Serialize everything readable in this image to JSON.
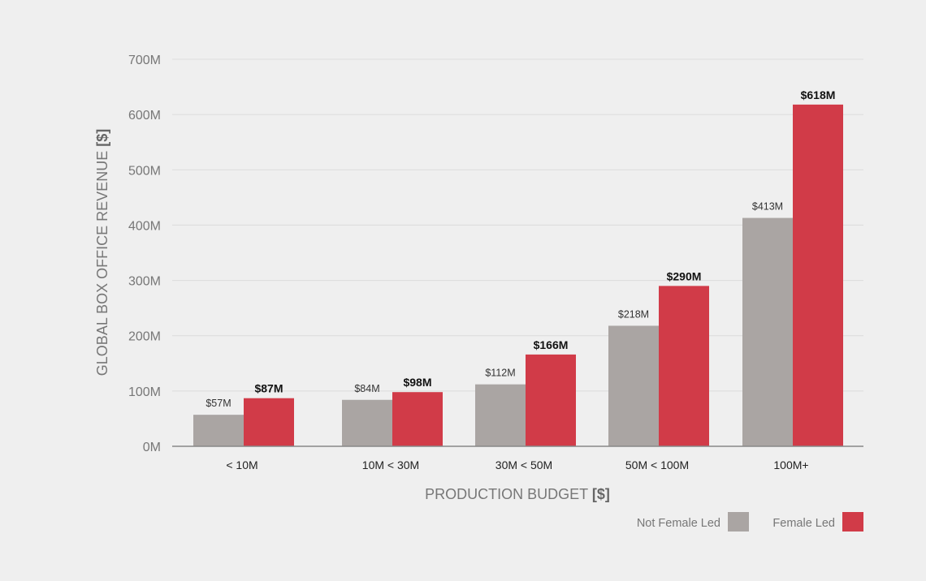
{
  "chart_data": {
    "type": "bar",
    "categories": [
      "< 10M",
      "10M < 30M",
      "30M < 50M",
      "50M < 100M",
      "100M+"
    ],
    "series": [
      {
        "name": "Not Female Led",
        "values": [
          57,
          84,
          112,
          218,
          413
        ],
        "labels": [
          "$57M",
          "$84M",
          "$112M",
          "$218M",
          "$413M"
        ],
        "color": "#aaa5a3"
      },
      {
        "name": "Female Led",
        "values": [
          87,
          98,
          166,
          290,
          618
        ],
        "labels": [
          "$87M",
          "$98M",
          "$166M",
          "$290M",
          "$618M"
        ],
        "color": "#d13b48"
      }
    ],
    "yticks": [
      "0M",
      "100M",
      "200M",
      "300M",
      "400M",
      "500M",
      "600M",
      "700M"
    ],
    "ylim": [
      0,
      700
    ],
    "xlabel": "PRODUCTION BUDGET",
    "xlabel_unit": "[$]",
    "ylabel": "GLOBAL BOX OFFICE REVENUE",
    "ylabel_unit": "[$]",
    "grid": true,
    "legend_position": "bottom-right"
  }
}
